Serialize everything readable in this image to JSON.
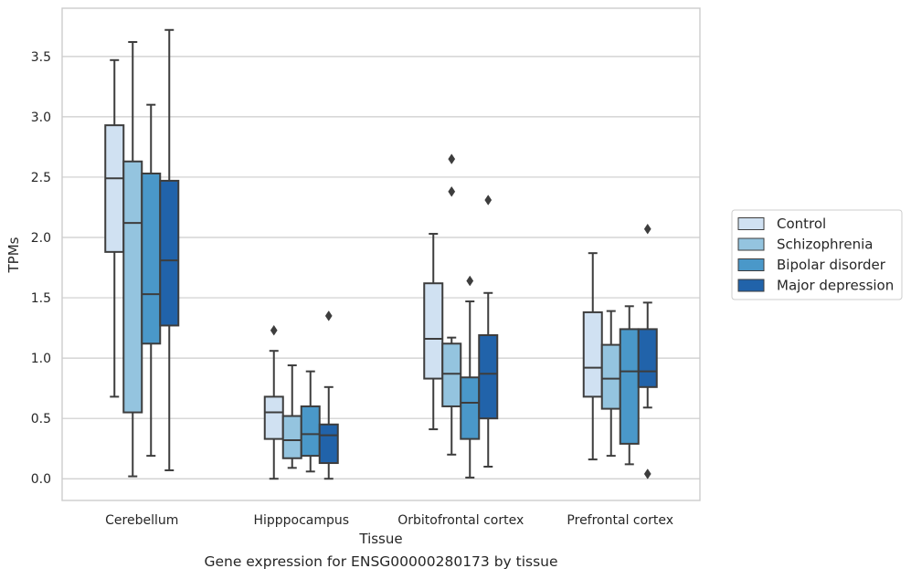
{
  "caption": "Gene expression for ENSG00000280173 by tissue",
  "chart_data": {
    "type": "box",
    "xlabel": "Tissue",
    "ylabel": "TPMs",
    "ylim": [
      -0.18,
      3.9
    ],
    "yticks": [
      0.0,
      0.5,
      1.0,
      1.5,
      2.0,
      2.5,
      3.0,
      3.5
    ],
    "ytick_labels": [
      "0.0",
      "0.5",
      "1.0",
      "1.5",
      "2.0",
      "2.5",
      "3.0",
      "3.5"
    ],
    "grid": "horizontal",
    "legend_position": "right",
    "categories": [
      "Cerebellum",
      "Hipppocampus",
      "Orbitofrontal cortex",
      "Prefrontal cortex"
    ],
    "series": [
      {
        "name": "Control",
        "color": "#d0e1f2",
        "boxes": [
          {
            "whisker_low": 0.68,
            "q1": 1.88,
            "median": 2.49,
            "q3": 2.93,
            "whisker_high": 3.47,
            "outliers": []
          },
          {
            "whisker_low": 0.0,
            "q1": 0.33,
            "median": 0.55,
            "q3": 0.68,
            "whisker_high": 1.06,
            "outliers": [
              1.23
            ]
          },
          {
            "whisker_low": 0.41,
            "q1": 0.83,
            "median": 1.16,
            "q3": 1.62,
            "whisker_high": 2.03,
            "outliers": []
          },
          {
            "whisker_low": 0.16,
            "q1": 0.68,
            "median": 0.92,
            "q3": 1.38,
            "whisker_high": 1.87,
            "outliers": []
          }
        ]
      },
      {
        "name": "Schizophrenia",
        "color": "#94c4df",
        "boxes": [
          {
            "whisker_low": 0.02,
            "q1": 0.55,
            "median": 2.12,
            "q3": 2.63,
            "whisker_high": 3.62,
            "outliers": []
          },
          {
            "whisker_low": 0.09,
            "q1": 0.17,
            "median": 0.32,
            "q3": 0.52,
            "whisker_high": 0.94,
            "outliers": []
          },
          {
            "whisker_low": 0.2,
            "q1": 0.6,
            "median": 0.87,
            "q3": 1.12,
            "whisker_high": 1.17,
            "outliers": [
              2.38,
              2.65
            ]
          },
          {
            "whisker_low": 0.19,
            "q1": 0.58,
            "median": 0.83,
            "q3": 1.11,
            "whisker_high": 1.39,
            "outliers": []
          }
        ]
      },
      {
        "name": "Bipolar disorder",
        "color": "#4a98c9",
        "boxes": [
          {
            "whisker_low": 0.19,
            "q1": 1.12,
            "median": 1.53,
            "q3": 2.53,
            "whisker_high": 3.1,
            "outliers": []
          },
          {
            "whisker_low": 0.06,
            "q1": 0.19,
            "median": 0.37,
            "q3": 0.6,
            "whisker_high": 0.89,
            "outliers": []
          },
          {
            "whisker_low": 0.01,
            "q1": 0.33,
            "median": 0.63,
            "q3": 0.84,
            "whisker_high": 1.47,
            "outliers": [
              1.64
            ]
          },
          {
            "whisker_low": 0.12,
            "q1": 0.29,
            "median": 0.89,
            "q3": 1.24,
            "whisker_high": 1.43,
            "outliers": []
          }
        ]
      },
      {
        "name": "Major depression",
        "color": "#2163aa",
        "boxes": [
          {
            "whisker_low": 0.07,
            "q1": 1.27,
            "median": 1.81,
            "q3": 2.47,
            "whisker_high": 3.72,
            "outliers": []
          },
          {
            "whisker_low": 0.0,
            "q1": 0.13,
            "median": 0.36,
            "q3": 0.45,
            "whisker_high": 0.76,
            "outliers": [
              1.35
            ]
          },
          {
            "whisker_low": 0.1,
            "q1": 0.5,
            "median": 0.87,
            "q3": 1.19,
            "whisker_high": 1.54,
            "outliers": [
              2.31
            ]
          },
          {
            "whisker_low": 0.59,
            "q1": 0.76,
            "median": 0.89,
            "q3": 1.24,
            "whisker_high": 1.46,
            "outliers": [
              0.04,
              2.07
            ]
          }
        ]
      }
    ]
  }
}
